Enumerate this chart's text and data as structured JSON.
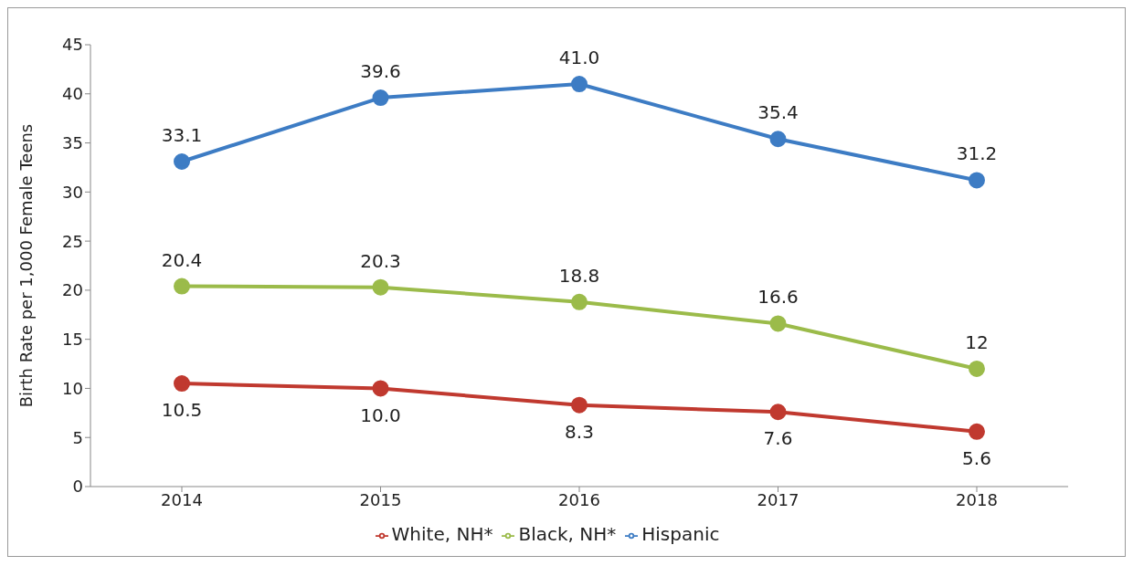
{
  "chart_data": {
    "type": "line",
    "ylabel": "Birth Rate per 1,000 Female Teens",
    "categories": [
      "2014",
      "2015",
      "2016",
      "2017",
      "2018"
    ],
    "series": [
      {
        "name": "White, NH*",
        "color": "#c0392f",
        "values": [
          10.5,
          10.0,
          8.3,
          7.6,
          5.6
        ],
        "value_labels": [
          "10.5",
          "10.0",
          "8.3",
          "7.6",
          "5.6"
        ]
      },
      {
        "name": "Black, NH*",
        "color": "#9bbb4a",
        "values": [
          20.4,
          20.3,
          18.8,
          16.6,
          12
        ],
        "value_labels": [
          "20.4",
          "20.3",
          "18.8",
          "16.6",
          "12"
        ]
      },
      {
        "name": "Hispanic",
        "color": "#3d7cc4",
        "values": [
          33.1,
          39.6,
          41.0,
          35.4,
          31.2
        ],
        "value_labels": [
          "33.1",
          "39.6",
          "41.0",
          "35.4",
          "31.2"
        ]
      }
    ],
    "ylim": [
      0,
      45
    ],
    "yticks": [
      0,
      5,
      10,
      15,
      20,
      25,
      30,
      35,
      40,
      45
    ],
    "grid": false,
    "legend": "bottom",
    "marker": "circle",
    "line_style": "solid"
  }
}
